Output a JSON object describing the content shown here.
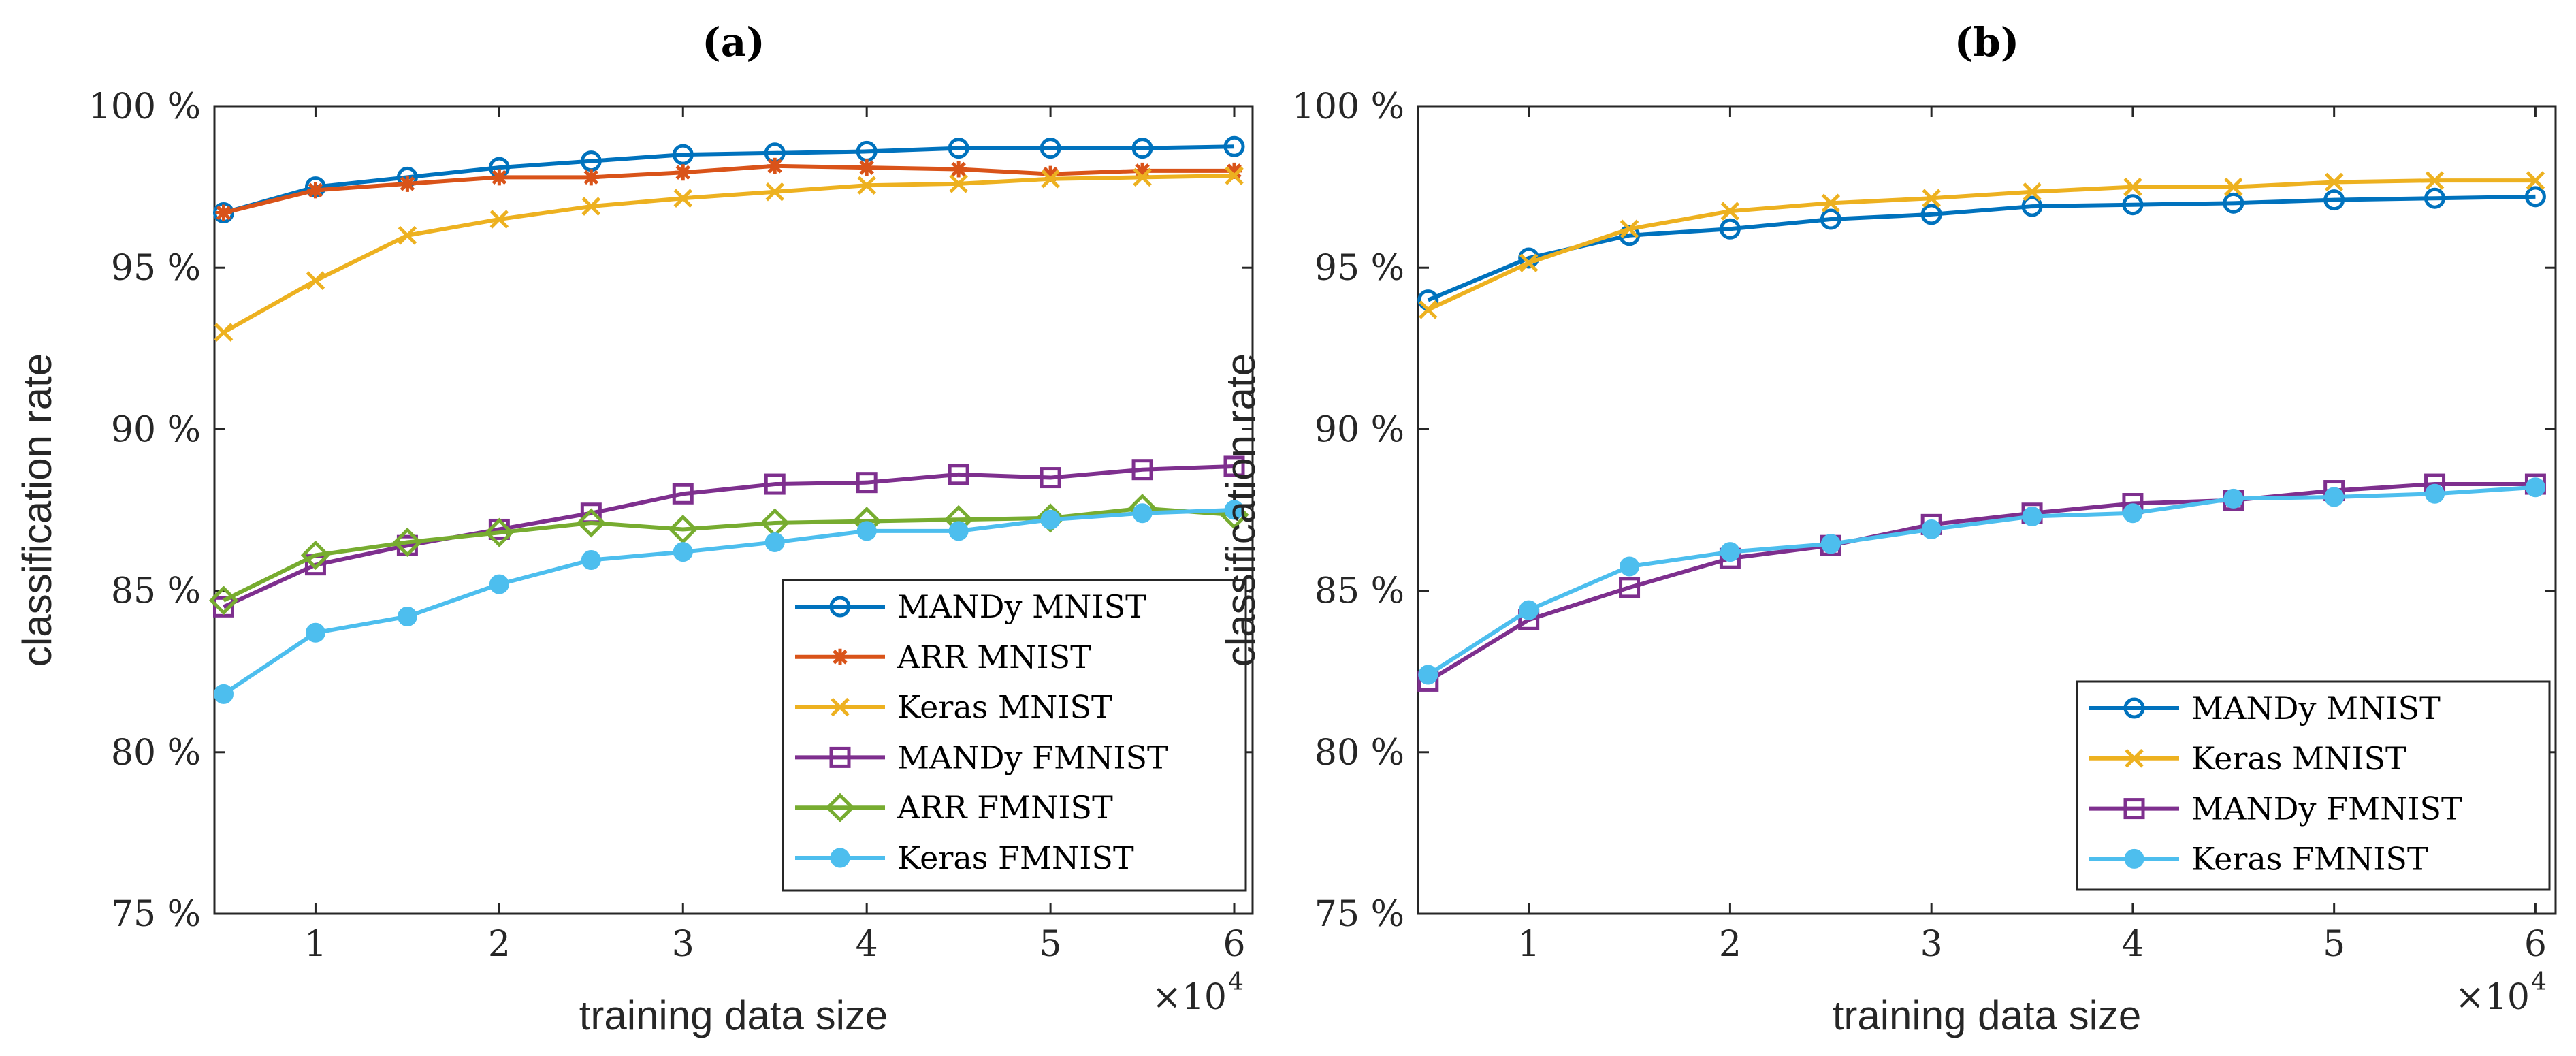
{
  "chart_data": [
    {
      "type": "line",
      "panel_label": "(a)",
      "xlabel": "training data size",
      "ylabel": "classification rate",
      "x_multiplier_label": "×10",
      "x_multiplier_exponent": "4",
      "x": [
        0.5,
        1,
        1.5,
        2,
        2.5,
        3,
        3.5,
        4,
        4.5,
        5,
        5.5,
        6
      ],
      "xlim": [
        0.45,
        6.1
      ],
      "ylim": [
        75,
        100
      ],
      "xticks": [
        1,
        2,
        3,
        4,
        5,
        6
      ],
      "xtick_labels": [
        "1",
        "2",
        "3",
        "4",
        "5",
        "6"
      ],
      "yticks": [
        75,
        80,
        85,
        90,
        95,
        100
      ],
      "ytick_labels": [
        "75 %",
        "80 %",
        "85 %",
        "90 %",
        "95 %",
        "100 %"
      ],
      "grid": false,
      "legend_position": "bottom-right",
      "series": [
        {
          "name": "MANDy MNIST",
          "color": "#0072BD",
          "marker": "circle-open",
          "values": [
            96.7,
            97.5,
            97.8,
            98.1,
            98.3,
            98.5,
            98.55,
            98.6,
            98.7,
            98.7,
            98.7,
            98.75
          ]
        },
        {
          "name": "ARR MNIST",
          "color": "#D95319",
          "marker": "asterisk",
          "values": [
            96.7,
            97.4,
            97.6,
            97.8,
            97.8,
            97.95,
            98.15,
            98.1,
            98.05,
            97.9,
            98.0,
            98.0
          ]
        },
        {
          "name": "Keras MNIST",
          "color": "#EDB120",
          "marker": "x",
          "values": [
            93.0,
            94.6,
            96.0,
            96.5,
            96.9,
            97.15,
            97.35,
            97.55,
            97.6,
            97.75,
            97.8,
            97.85
          ]
        },
        {
          "name": "MANDy FMNIST",
          "color": "#7E2F8E",
          "marker": "square-open",
          "values": [
            84.5,
            85.8,
            86.4,
            86.9,
            87.4,
            88.0,
            88.3,
            88.35,
            88.6,
            88.5,
            88.75,
            88.85
          ]
        },
        {
          "name": "ARR FMNIST",
          "color": "#77AC30",
          "marker": "diamond-open",
          "values": [
            84.7,
            86.1,
            86.5,
            86.8,
            87.1,
            86.9,
            87.1,
            87.15,
            87.2,
            87.25,
            87.55,
            87.35
          ]
        },
        {
          "name": "Keras FMNIST",
          "color": "#4DBEEE",
          "marker": "circle-filled",
          "values": [
            81.8,
            83.7,
            84.2,
            85.2,
            85.95,
            86.2,
            86.5,
            86.85,
            86.85,
            87.2,
            87.4,
            87.5
          ]
        }
      ]
    },
    {
      "type": "line",
      "panel_label": "(b)",
      "xlabel": "training data size",
      "ylabel": "classification rate",
      "x_multiplier_label": "×10",
      "x_multiplier_exponent": "4",
      "x": [
        0.5,
        1,
        1.5,
        2,
        2.5,
        3,
        3.5,
        4,
        4.5,
        5,
        5.5,
        6
      ],
      "xlim": [
        0.45,
        6.1
      ],
      "ylim": [
        75,
        100
      ],
      "xticks": [
        1,
        2,
        3,
        4,
        5,
        6
      ],
      "xtick_labels": [
        "1",
        "2",
        "3",
        "4",
        "5",
        "6"
      ],
      "yticks": [
        75,
        80,
        85,
        90,
        95,
        100
      ],
      "ytick_labels": [
        "75 %",
        "80 %",
        "85 %",
        "90 %",
        "95 %",
        "100 %"
      ],
      "grid": false,
      "legend_position": "bottom-right",
      "series": [
        {
          "name": "MANDy MNIST",
          "color": "#0072BD",
          "marker": "circle-open",
          "values": [
            94.0,
            95.3,
            96.0,
            96.2,
            96.5,
            96.65,
            96.9,
            96.95,
            97.0,
            97.1,
            97.15,
            97.2
          ]
        },
        {
          "name": "Keras MNIST",
          "color": "#EDB120",
          "marker": "x",
          "values": [
            93.7,
            95.15,
            96.2,
            96.75,
            97.0,
            97.15,
            97.35,
            97.5,
            97.5,
            97.65,
            97.7,
            97.7
          ]
        },
        {
          "name": "MANDy FMNIST",
          "color": "#7E2F8E",
          "marker": "square-open",
          "values": [
            82.2,
            84.1,
            85.1,
            86.0,
            86.4,
            87.05,
            87.4,
            87.7,
            87.8,
            88.1,
            88.3,
            88.3
          ]
        },
        {
          "name": "Keras FMNIST",
          "color": "#4DBEEE",
          "marker": "circle-filled",
          "values": [
            82.4,
            84.4,
            85.75,
            86.2,
            86.45,
            86.9,
            87.3,
            87.4,
            87.85,
            87.9,
            88.0,
            88.2
          ]
        }
      ]
    }
  ]
}
